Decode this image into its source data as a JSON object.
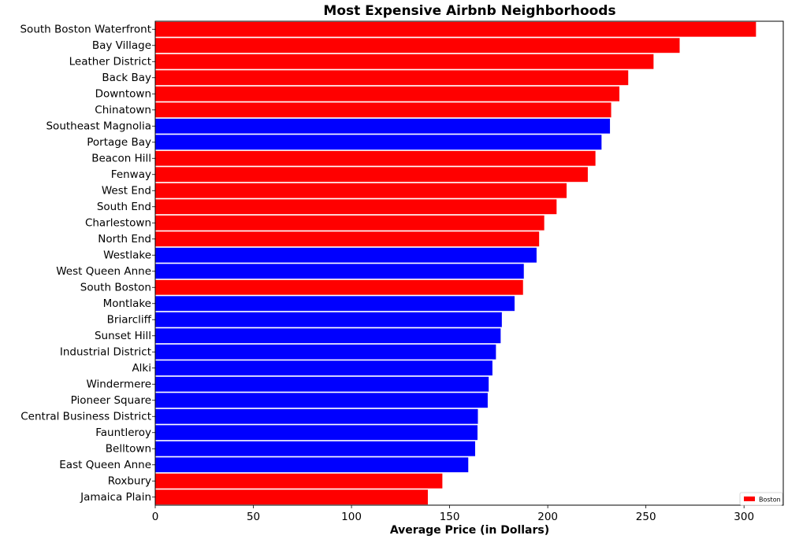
{
  "chart_data": {
    "type": "bar",
    "orientation": "horizontal",
    "title": "Most Expensive Airbnb Neighborhoods",
    "xlabel": "Average Price (in Dollars)",
    "ylabel": "",
    "xlim": [
      0,
      320
    ],
    "xticks": [
      0,
      50,
      100,
      150,
      200,
      250,
      300
    ],
    "grid": false,
    "legend": {
      "placement": "bottom-right",
      "entries": [
        {
          "label": "Boston",
          "color": "#ff0000"
        }
      ]
    },
    "categories": [
      "South Boston Waterfront",
      "Bay Village",
      "Leather District",
      "Back Bay",
      "Downtown",
      "Chinatown",
      "Southeast Magnolia",
      "Portage Bay",
      "Beacon Hill",
      "Fenway",
      "West End",
      "South End",
      "Charlestown",
      "North End",
      "Westlake",
      "West Queen Anne",
      "South Boston",
      "Montlake",
      "Briarcliff",
      "Sunset Hill",
      "Industrial District",
      "Alki",
      "Windermere",
      "Pioneer Square",
      "Central Business District",
      "Fauntleroy",
      "Belltown",
      "East Queen Anne",
      "Roxbury",
      "Jamaica Plain"
    ],
    "values": [
      306.1,
      267.2,
      253.9,
      241.0,
      236.5,
      232.3,
      231.7,
      227.4,
      224.3,
      220.4,
      209.6,
      204.5,
      198.2,
      195.6,
      194.3,
      187.8,
      187.4,
      183.1,
      176.6,
      176.0,
      173.6,
      171.8,
      169.9,
      169.4,
      164.4,
      164.2,
      163.0,
      159.5,
      146.3,
      138.9
    ],
    "colors": [
      "#ff0000",
      "#ff0000",
      "#ff0000",
      "#ff0000",
      "#ff0000",
      "#ff0000",
      "#0000ff",
      "#0000ff",
      "#ff0000",
      "#ff0000",
      "#ff0000",
      "#ff0000",
      "#ff0000",
      "#ff0000",
      "#0000ff",
      "#0000ff",
      "#ff0000",
      "#0000ff",
      "#0000ff",
      "#0000ff",
      "#0000ff",
      "#0000ff",
      "#0000ff",
      "#0000ff",
      "#0000ff",
      "#0000ff",
      "#0000ff",
      "#0000ff",
      "#ff0000",
      "#ff0000"
    ]
  }
}
